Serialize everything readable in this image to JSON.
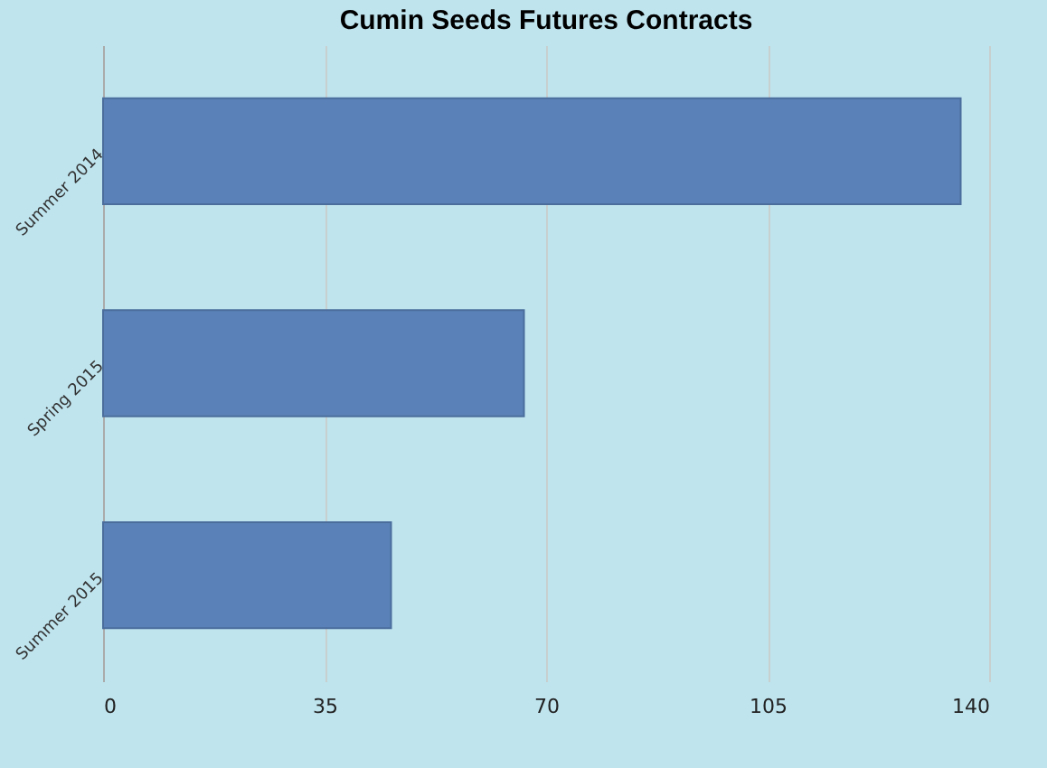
{
  "chart_data": {
    "type": "bar",
    "orientation": "horizontal",
    "title": "Cumin Seeds Futures Contracts",
    "categories": [
      "Summer 2014",
      "Spring 2015",
      "Summer 2015"
    ],
    "values": [
      135.5,
      66.5,
      45.5
    ],
    "color": "#5b82b8",
    "xlim": [
      0,
      140
    ],
    "xticks": [
      0,
      35,
      70,
      105,
      140
    ],
    "grid": "x"
  }
}
